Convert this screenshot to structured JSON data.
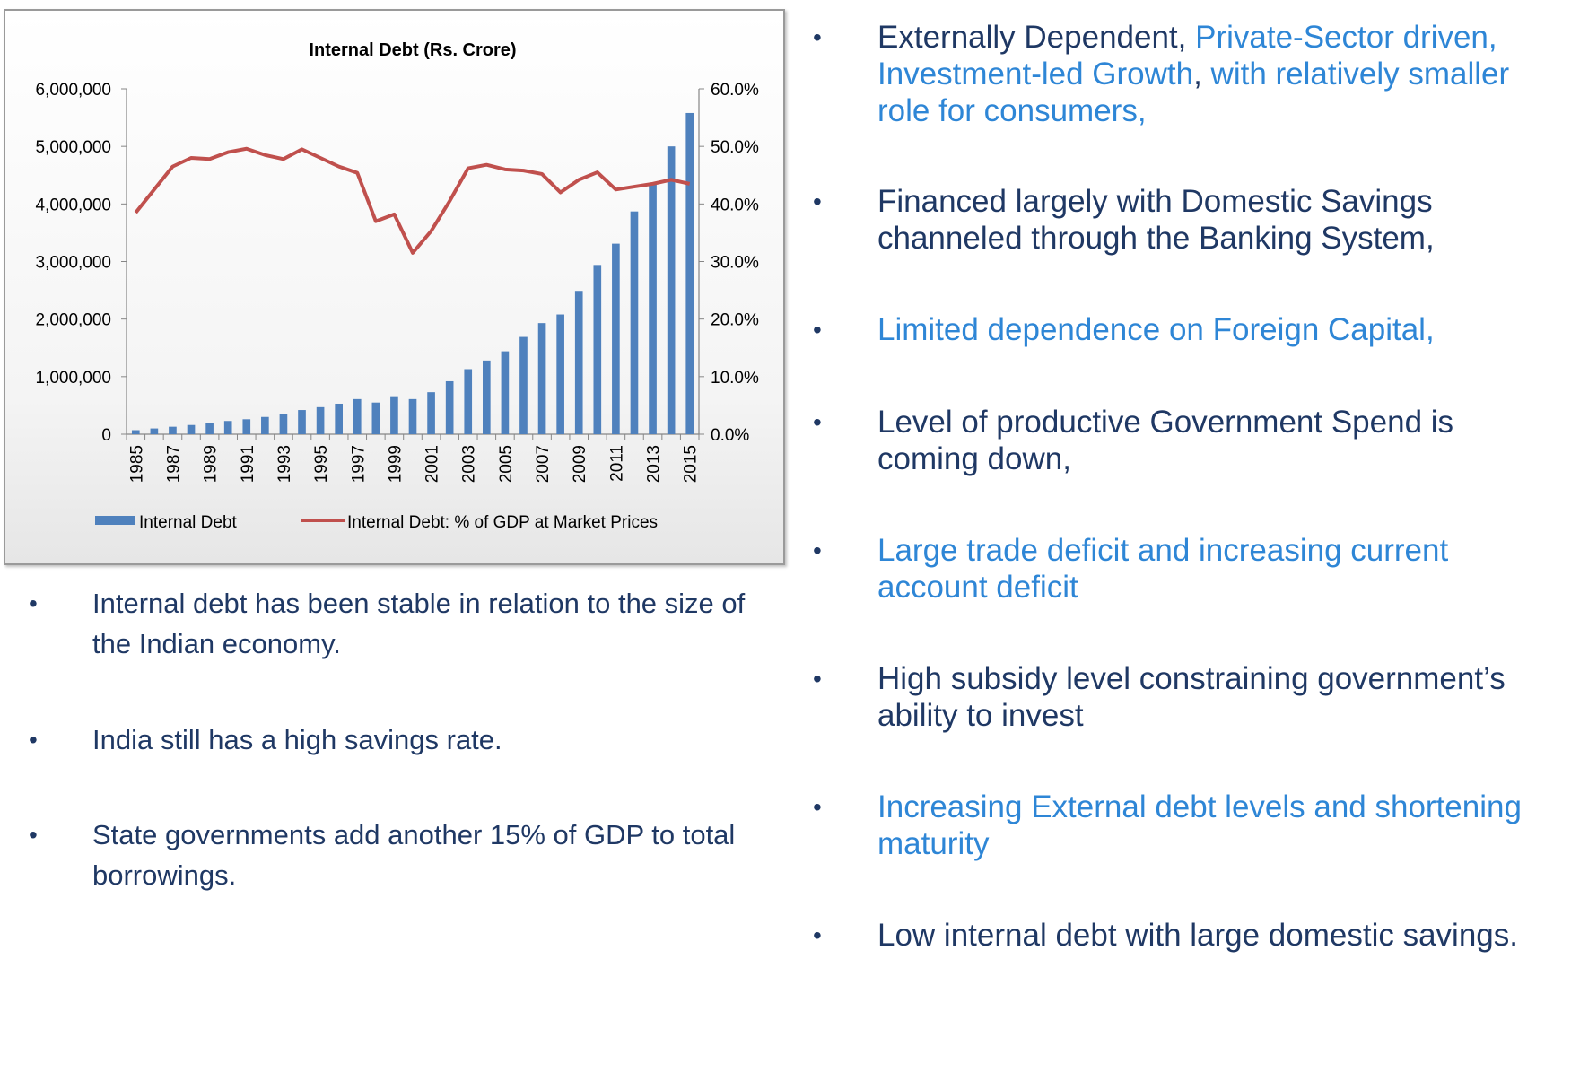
{
  "chart_data": {
    "type": "bar+line",
    "title": "Internal Debt (Rs. Crore)",
    "x": [
      1985,
      1986,
      1987,
      1988,
      1989,
      1990,
      1991,
      1992,
      1993,
      1994,
      1995,
      1996,
      1997,
      1998,
      1999,
      2000,
      2001,
      2002,
      2003,
      2004,
      2005,
      2006,
      2007,
      2008,
      2009,
      2010,
      2011,
      2012,
      2013,
      2014,
      2015
    ],
    "x_tick_labels": [
      "1985",
      "1987",
      "1989",
      "1991",
      "1993",
      "1995",
      "1997",
      "1999",
      "2001",
      "2003",
      "2005",
      "2007",
      "2009",
      "2011",
      "2013",
      "2015"
    ],
    "y_left_ticks": [
      "6,000,000",
      "5,000,000",
      "4,000,000",
      "3,000,000",
      "2,000,000",
      "1,000,000",
      "0"
    ],
    "y_right_ticks": [
      "60.0%",
      "50.0%",
      "40.0%",
      "30.0%",
      "20.0%",
      "10.0%",
      "0.0%"
    ],
    "ylim_left": [
      0,
      6000000
    ],
    "ylim_right": [
      0,
      60
    ],
    "series": [
      {
        "name": "Internal Debt",
        "type": "bar",
        "axis": "left",
        "color": "#4f81bd",
        "values": [
          70000,
          100000,
          130000,
          160000,
          200000,
          230000,
          260000,
          300000,
          350000,
          420000,
          470000,
          530000,
          610000,
          550000,
          660000,
          610000,
          730000,
          920000,
          1130000,
          1280000,
          1440000,
          1690000,
          1930000,
          2080000,
          2490000,
          2940000,
          3310000,
          3870000,
          4370000,
          5000000,
          5580000
        ]
      },
      {
        "name": "Internal Debt: % of GDP at Market Prices",
        "type": "line",
        "axis": "right",
        "color": "#c0504d",
        "values": [
          38.5,
          42.5,
          46.5,
          48.0,
          47.8,
          49.0,
          49.6,
          48.5,
          47.8,
          49.5,
          48.0,
          46.5,
          45.4,
          37.0,
          38.2,
          31.5,
          35.3,
          40.5,
          46.2,
          46.8,
          46.0,
          45.8,
          45.2,
          42.0,
          44.2,
          45.5,
          42.5,
          43.0,
          43.5,
          44.2,
          43.5
        ]
      }
    ],
    "legend": "bottom",
    "grid": false
  },
  "left_bullets": [
    {
      "bullet": "•",
      "text": "Internal debt has been stable in relation to the size of the Indian economy."
    },
    {
      "bullet": "•",
      "text": "India still has a high savings rate."
    },
    {
      "bullet": "•",
      "text": "State governments add another 15% of GDP to total borrowings."
    }
  ],
  "right_bullets": [
    {
      "bullet": "•",
      "part1": "Externally Dependent, ",
      "part2": "Private-Sector driven, Investment-led Growth",
      "part3": ", ",
      "part4": "with relatively smaller role for consumers,"
    },
    {
      "bullet": "•",
      "text": "Financed largely with Domestic Savings channeled through the Banking System,"
    },
    {
      "bullet": "•",
      "text": "Limited dependence on Foreign Capital,"
    },
    {
      "bullet": "•",
      "text": "Level of productive Government Spend is coming down,"
    },
    {
      "bullet": "•",
      "text": "Large trade deficit and increasing current account deficit"
    },
    {
      "bullet": "•",
      "text": "High subsidy level constraining government’s ability to invest"
    },
    {
      "bullet": "•",
      "text": "Increasing External debt levels and shortening maturity"
    },
    {
      "bullet": "•",
      "text": "Low internal debt with large domestic savings."
    }
  ],
  "colors": {
    "dark_text": "#1f3864",
    "light_text": "#2e86d6",
    "bar": "#4f81bd",
    "line": "#c0504d"
  }
}
